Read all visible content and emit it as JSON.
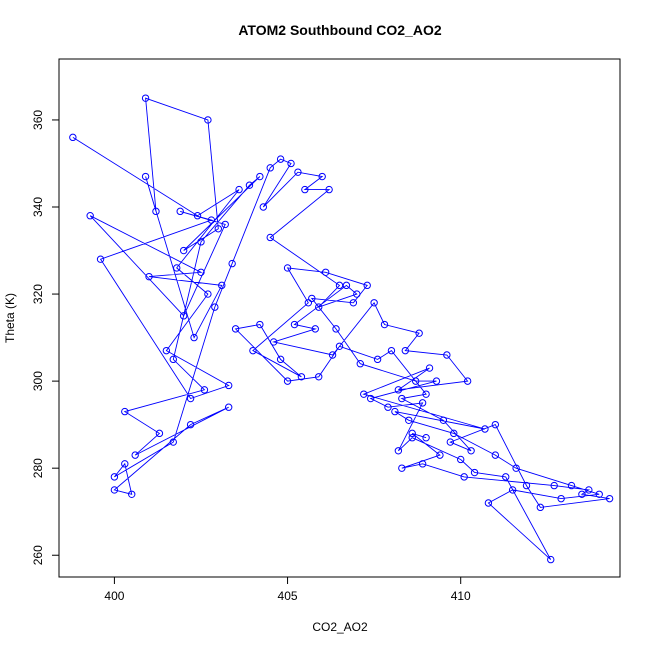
{
  "chart_data": {
    "type": "scatter",
    "title": "ATOM2 Southbound CO2_AO2",
    "xlabel": "CO2_AO2",
    "ylabel": "Theta (K)",
    "xlim": [
      398.4,
      414.6
    ],
    "ylim": [
      255,
      374
    ],
    "x_ticks": [
      400,
      405,
      410
    ],
    "y_ticks": [
      260,
      280,
      300,
      320,
      340,
      360
    ],
    "grid": false,
    "legend": "none",
    "marker": "open-circle",
    "connect_points": true,
    "series": [
      {
        "color": "#0000ff",
        "x": [
          398.8,
          402.4,
          403.6,
          401.8,
          402.7,
          401.5,
          403.3,
          402.2,
          399.6,
          402.8,
          401.9,
          403.2,
          402.0,
          399.3,
          402.5,
          401.0,
          403.1,
          402.3,
          400.9,
          401.2,
          400.9,
          402.7,
          403.0,
          402.0,
          404.2,
          403.9,
          402.5,
          401.7,
          402.6,
          400.3,
          401.3,
          400.6,
          403.3,
          402.2,
          400.0,
          400.5,
          400.3,
          400.0,
          401.7,
          402.9,
          403.4,
          404.5,
          404.8,
          405.1,
          404.3,
          405.3,
          406.0,
          405.5,
          406.2,
          404.5,
          406.5,
          405.9,
          407.0,
          406.7,
          405.2,
          405.8,
          404.6,
          406.3,
          407.5,
          407.8,
          408.8,
          408.4,
          409.6,
          410.2,
          408.2,
          409.1,
          407.2,
          410.7,
          408.1,
          408.5,
          409.8,
          411.0,
          411.6,
          413.2,
          414.0,
          412.9,
          411.5,
          410.8,
          412.6,
          411.3,
          410.4,
          410.0,
          408.6,
          408.2,
          408.9,
          407.9,
          407.4,
          409.3,
          408.7,
          407.1,
          406.4,
          405.7,
          406.9,
          407.3,
          406.1,
          405.0,
          405.6,
          404.0,
          405.4,
          404.8,
          404.2,
          403.5,
          405.0,
          405.9,
          406.5,
          407.6,
          408.0,
          409.0,
          408.3,
          409.5,
          410.3,
          409.7,
          411.0,
          411.9,
          412.3,
          414.3,
          413.5,
          413.7,
          412.7,
          410.1,
          408.9,
          408.3,
          409.4,
          408.6,
          409.0
        ],
        "y": [
          356,
          338,
          344,
          326,
          320,
          307,
          299,
          296,
          328,
          337,
          339,
          336,
          315,
          338,
          325,
          324,
          322,
          310,
          347,
          339,
          365,
          360,
          335,
          330,
          347,
          345,
          332,
          305,
          298,
          293,
          288,
          283,
          294,
          290,
          275,
          274,
          281,
          278,
          286,
          317,
          327,
          349,
          351,
          350,
          340,
          348,
          347,
          344,
          344,
          333,
          322,
          317,
          320,
          322,
          313,
          312,
          309,
          306,
          318,
          313,
          311,
          307,
          306,
          300,
          298,
          303,
          297,
          289,
          293,
          291,
          288,
          283,
          280,
          276,
          274,
          273,
          275,
          272,
          259,
          278,
          279,
          282,
          287,
          284,
          295,
          294,
          296,
          300,
          300,
          304,
          312,
          319,
          318,
          322,
          325,
          326,
          318,
          307,
          301,
          305,
          313,
          312,
          300,
          301,
          308,
          305,
          307,
          297,
          296,
          291,
          284,
          286,
          290,
          276,
          271,
          273,
          274,
          275,
          276,
          278,
          281,
          280,
          283,
          288,
          287
        ]
      }
    ]
  }
}
